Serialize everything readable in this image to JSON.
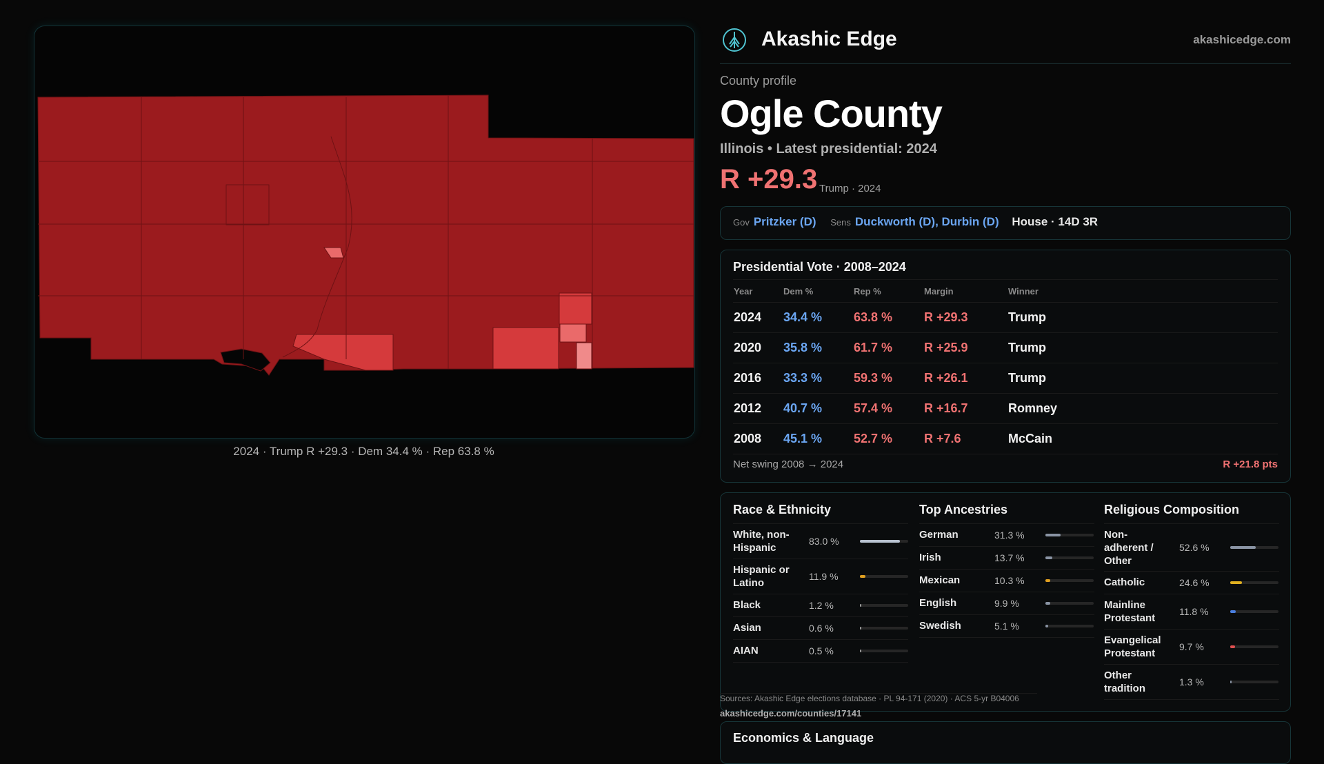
{
  "map": {
    "caption": "2024 · Trump R +29.3 · Dem 34.4 % · Rep 63.8 %",
    "colors": {
      "dominant": "#9b1b1e",
      "mid": "#d53a3c",
      "light": "#ea6a6a",
      "lighter": "#f08a8a"
    }
  },
  "header": {
    "brand": "Akashic Edge",
    "domain": "akashicedge.com",
    "logo_icon": "tree-circle-icon"
  },
  "profile": {
    "eyebrow": "County profile",
    "county": "Ogle County",
    "subtitle": "Illinois • Latest presidential: 2024",
    "margin": "R +29.3",
    "margin_note": "Trump · 2024"
  },
  "officials": {
    "gov_label": "Gov",
    "gov": "Pritzker (D)",
    "sens_label": "Sens",
    "sens": "Duckworth (D), Durbin (D)",
    "house": "House · 14D 3R"
  },
  "presidential": {
    "title": "Presidential Vote · 2008–2024",
    "columns": [
      "Year",
      "Dem %",
      "Rep %",
      "Margin",
      "Winner"
    ],
    "rows": [
      {
        "year": "2024",
        "dem": "34.4 %",
        "rep": "63.8 %",
        "margin": "R +29.3",
        "winner": "Trump"
      },
      {
        "year": "2020",
        "dem": "35.8 %",
        "rep": "61.7 %",
        "margin": "R +25.9",
        "winner": "Trump"
      },
      {
        "year": "2016",
        "dem": "33.3 %",
        "rep": "59.3 %",
        "margin": "R +26.1",
        "winner": "Trump"
      },
      {
        "year": "2012",
        "dem": "40.7 %",
        "rep": "57.4 %",
        "margin": "R +16.7",
        "winner": "Romney"
      },
      {
        "year": "2008",
        "dem": "45.1 %",
        "rep": "52.7 %",
        "margin": "R +7.6",
        "winner": "McCain"
      }
    ],
    "swing_label": "Net swing 2008 → 2024",
    "swing_value": "R +21.8 pts"
  },
  "race": {
    "title": "Race & Ethnicity",
    "items": [
      {
        "label": "White, non-Hispanic",
        "value": "83.0 %",
        "fraction": 0.83,
        "color": "#b8c2d0"
      },
      {
        "label": "Hispanic or Latino",
        "value": "11.9 %",
        "fraction": 0.119,
        "color": "#e0a020"
      },
      {
        "label": "Black",
        "value": "1.2 %",
        "fraction": 0.012,
        "color": "#9a9a9a"
      },
      {
        "label": "Asian",
        "value": "0.6 %",
        "fraction": 0.006,
        "color": "#9a9a9a"
      },
      {
        "label": "AIAN",
        "value": "0.5 %",
        "fraction": 0.005,
        "color": "#9a9a9a"
      }
    ]
  },
  "ancestry": {
    "title": "Top Ancestries",
    "items": [
      {
        "label": "German",
        "value": "31.3 %",
        "fraction": 0.313,
        "color": "#8a94a4"
      },
      {
        "label": "Irish",
        "value": "13.7 %",
        "fraction": 0.137,
        "color": "#8a94a4"
      },
      {
        "label": "Mexican",
        "value": "10.3 %",
        "fraction": 0.103,
        "color": "#e0a020"
      },
      {
        "label": "English",
        "value": "9.9 %",
        "fraction": 0.099,
        "color": "#8a94a4"
      },
      {
        "label": "Swedish",
        "value": "5.1 %",
        "fraction": 0.051,
        "color": "#8a94a4"
      }
    ]
  },
  "religion": {
    "title": "Religious Composition",
    "items": [
      {
        "label": "Non-adherent / Other",
        "value": "52.6 %",
        "fraction": 0.526,
        "color": "#8a94a4"
      },
      {
        "label": "Catholic",
        "value": "24.6 %",
        "fraction": 0.246,
        "color": "#e0b020"
      },
      {
        "label": "Mainline Protestant",
        "value": "11.8 %",
        "fraction": 0.118,
        "color": "#4a7fe0"
      },
      {
        "label": "Evangelical Protestant",
        "value": "9.7 %",
        "fraction": 0.097,
        "color": "#e05050"
      },
      {
        "label": "Other tradition",
        "value": "1.3 %",
        "fraction": 0.013,
        "color": "#8a94a4"
      }
    ]
  },
  "sources": {
    "text": "Sources: Akashic Edge elections database · PL 94-171 (2020) · ACS 5-yr B04006",
    "url": "akashicedge.com/counties/17141"
  },
  "economics": {
    "title": "Economics & Language"
  }
}
